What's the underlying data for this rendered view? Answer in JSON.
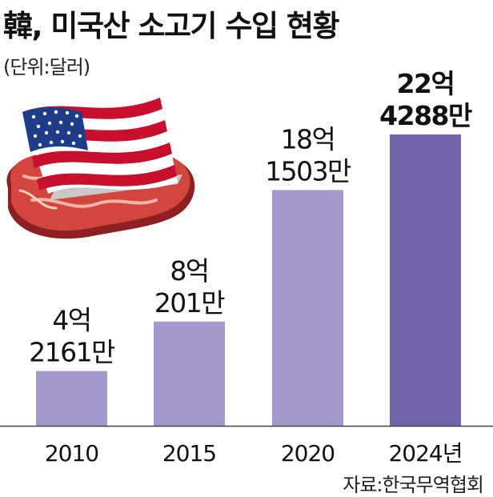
{
  "chart_data": {
    "type": "bar",
    "title": "韓, 미국산 소고기 수입 현황",
    "unit_label": "(단위:달러)",
    "source": "자료:한국무역협회",
    "categories": [
      "2010",
      "2015",
      "2020",
      "2024년"
    ],
    "values": [
      421610000,
      802010000,
      1815030000,
      2242880000
    ],
    "value_labels": [
      [
        "4억",
        "2161만"
      ],
      [
        "8억",
        "201만"
      ],
      [
        "18억",
        "1503만"
      ],
      [
        "22억",
        "4288만"
      ]
    ],
    "highlight_index": 3,
    "colors": {
      "bar": "#a599cc",
      "highlight": "#7565ad",
      "axis": "#444444"
    },
    "ylim": [
      0,
      2242880000
    ],
    "grid": false,
    "legend": "none"
  },
  "illustration": {
    "icon": "us-flag-on-beef-steak-icon"
  }
}
